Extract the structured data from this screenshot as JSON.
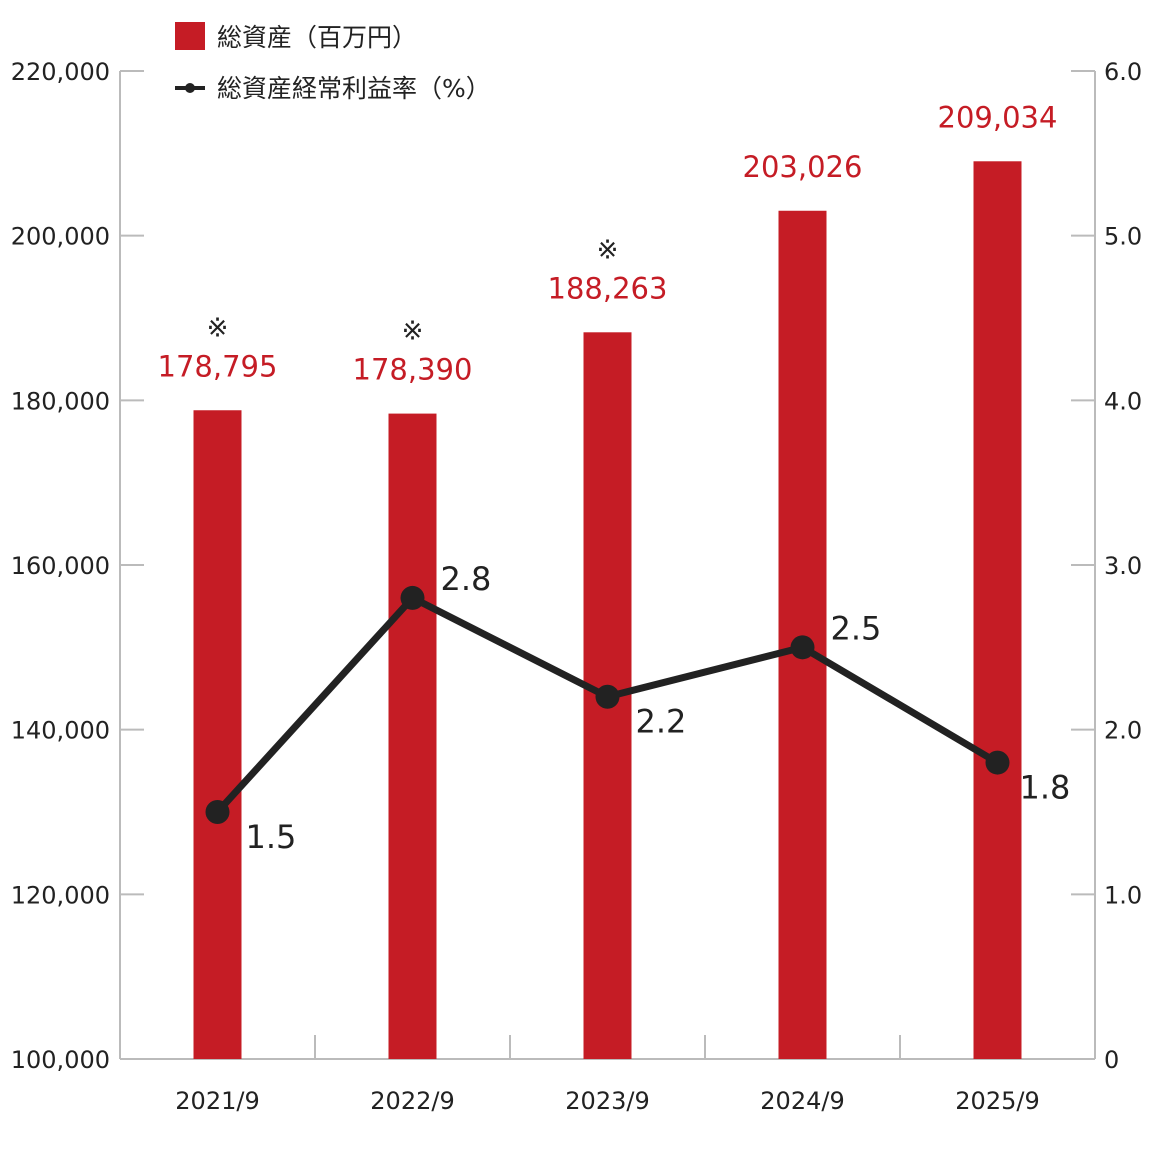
{
  "colors": {
    "bar": "#c51c25",
    "line": "#222222",
    "axis": "#bbbbbb",
    "bar_label": "#c51c25"
  },
  "legend": {
    "bar_label": "総資産（百万円）",
    "line_label": "総資産経常利益率（%）"
  },
  "chart_data": {
    "type": "bar+line",
    "categories": [
      "2021/9",
      "2022/9",
      "2023/9",
      "2024/9",
      "2025/9"
    ],
    "series": [
      {
        "name": "総資産（百万円）",
        "type": "bar",
        "axis": "left",
        "values": [
          178795,
          178390,
          188263,
          203026,
          209034
        ],
        "value_labels": [
          "178,795",
          "178,390",
          "188,263",
          "203,026",
          "209,034"
        ],
        "notes": [
          "※",
          "※",
          "※",
          "",
          ""
        ]
      },
      {
        "name": "総資産経常利益率（%）",
        "type": "line",
        "axis": "right",
        "values": [
          1.5,
          2.8,
          2.2,
          2.5,
          1.8
        ],
        "value_labels": [
          "1.5",
          "2.8",
          "2.2",
          "2.5",
          "1.8"
        ]
      }
    ],
    "y_left": {
      "range": [
        100000,
        220000
      ],
      "ticks": [
        100000,
        120000,
        140000,
        160000,
        180000,
        200000,
        220000
      ],
      "tick_labels": [
        "100,000",
        "120,000",
        "140,000",
        "160,000",
        "180,000",
        "200,000",
        "220,000"
      ]
    },
    "y_right": {
      "range": [
        0,
        6
      ],
      "ticks": [
        0,
        1,
        2,
        3,
        4,
        5,
        6
      ],
      "tick_labels": [
        "0",
        "1.0",
        "2.0",
        "3.0",
        "4.0",
        "5.0",
        "6.0"
      ]
    },
    "grid": false,
    "legend_position": "top-left"
  }
}
